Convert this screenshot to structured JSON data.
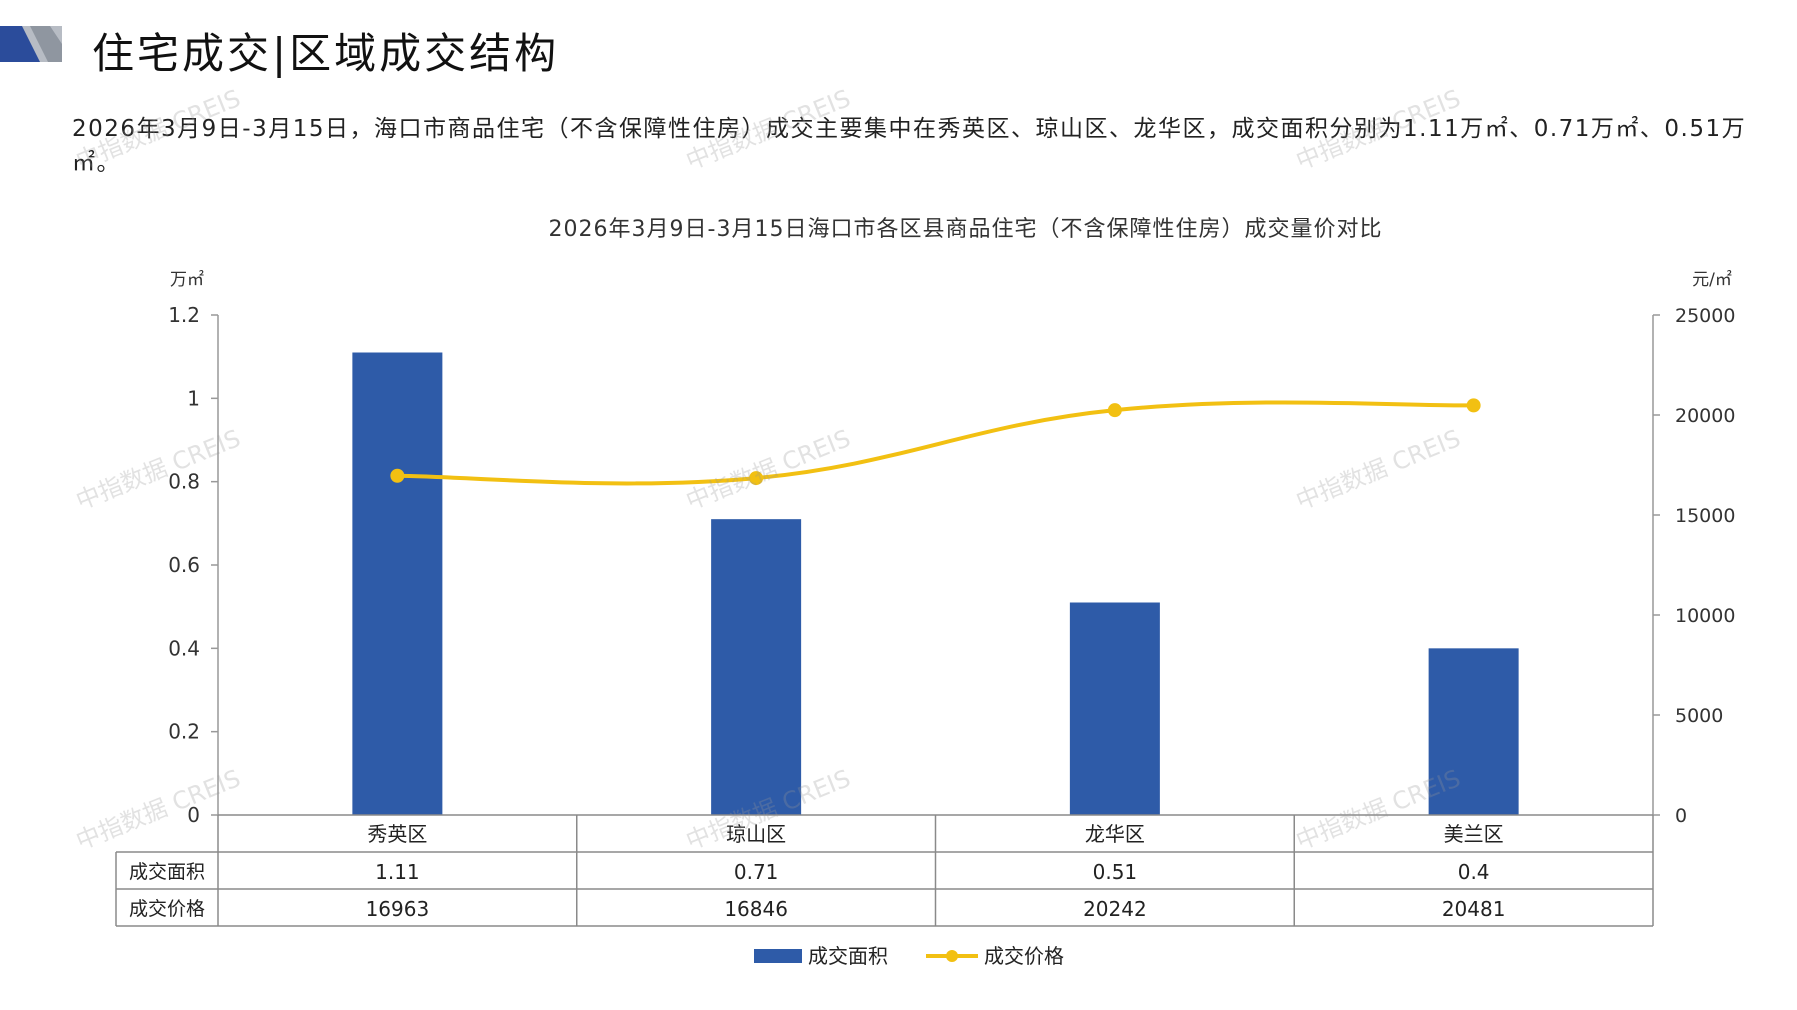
{
  "header": {
    "title": "住宅成交|区域成交结构"
  },
  "summary": {
    "text": "2026年3月9日-3月15日，海口市商品住宅（不含保障性住房）成交主要集中在秀英区、琼山区、龙华区，成交面积分别为1.11万㎡、0.71万㎡、0.51万㎡。"
  },
  "watermark": "中指数据 CREIS",
  "colors": {
    "bar": "#2E5BA8",
    "line": "#F2C012",
    "logo_dark": "#2B4C9B",
    "logo_grey": "#9AA0A8"
  },
  "chart_data": {
    "type": "bar",
    "title": "2026年3月9日-3月15日海口市各区县商品住宅（不含保障性住房）成交量价对比",
    "categories": [
      "秀英区",
      "琼山区",
      "龙华区",
      "美兰区"
    ],
    "y_left": {
      "unit": "万㎡",
      "ylim": [
        0,
        1.2
      ],
      "ticks": [
        "1.2",
        "1",
        "0.8",
        "0.6",
        "0.4",
        "0.2",
        "0"
      ]
    },
    "y_right": {
      "unit": "元/㎡",
      "ylim": [
        0,
        25000
      ],
      "ticks": [
        "25000",
        "20000",
        "15000",
        "10000",
        "5000",
        "0"
      ]
    },
    "series": [
      {
        "name": "成交面积",
        "type": "bar",
        "axis": "left",
        "values": [
          1.11,
          0.71,
          0.51,
          0.4
        ],
        "labels": [
          "1.11",
          "0.71",
          "0.51",
          "0.4"
        ]
      },
      {
        "name": "成交价格",
        "type": "line",
        "axis": "right",
        "values": [
          16963,
          16846,
          20242,
          20481
        ],
        "labels": [
          "16963",
          "16846",
          "20242",
          "20481"
        ]
      }
    ],
    "legend_position": "bottom",
    "grid": false
  }
}
